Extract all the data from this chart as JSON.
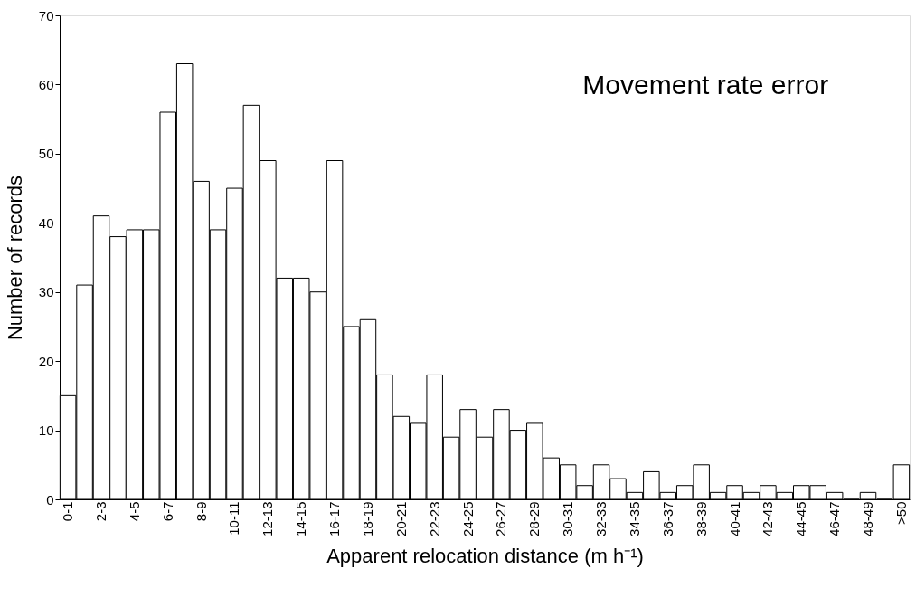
{
  "chart_data": {
    "type": "bar",
    "title": "Movement rate error",
    "xlabel": "Apparent relocation distance (m h⁻¹)",
    "ylabel": "Number of records",
    "categories": [
      "0-1",
      null,
      "2-3",
      null,
      "4-5",
      null,
      "6-7",
      null,
      "8-9",
      null,
      "10-11",
      null,
      "12-13",
      null,
      "14-15",
      null,
      "16-17",
      null,
      "18-19",
      null,
      "20-21",
      null,
      "22-23",
      null,
      "24-25",
      null,
      "26-27",
      null,
      "28-29",
      null,
      "30-31",
      null,
      "32-33",
      null,
      "34-35",
      null,
      "36-37",
      null,
      "38-39",
      null,
      "40-41",
      null,
      "42-43",
      null,
      "44-45",
      null,
      "46-47",
      null,
      "48-49",
      null,
      ">50"
    ],
    "values": [
      15,
      31,
      41,
      38,
      39,
      39,
      56,
      63,
      46,
      39,
      45,
      57,
      49,
      32,
      32,
      30,
      49,
      25,
      26,
      18,
      12,
      11,
      18,
      9,
      13,
      9,
      13,
      10,
      11,
      6,
      5,
      2,
      5,
      3,
      1,
      4,
      1,
      2,
      5,
      1,
      2,
      1,
      2,
      1,
      2,
      2,
      1,
      0,
      1,
      0,
      5
    ],
    "color": "#ffffff",
    "ylim": [
      0,
      70
    ],
    "yticks": [
      0,
      10,
      20,
      30,
      40,
      50,
      60,
      70
    ],
    "grid": false
  }
}
